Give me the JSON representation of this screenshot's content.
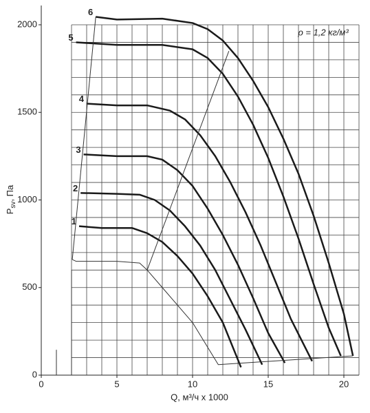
{
  "chart_data": {
    "type": "line",
    "annotation": "ρ = 1,2 кг/м³",
    "x_label": "Q, м³/ч x 1000",
    "y_label": {
      "main": "P",
      "sub": "sv",
      "rest": ", Па"
    },
    "xlim": [
      0,
      21
    ],
    "ylim": [
      0,
      2110
    ],
    "xticks": [
      0,
      5,
      10,
      15,
      20
    ],
    "yticks": [
      0,
      500,
      1000,
      1500,
      2000
    ],
    "grid": true,
    "xgrid": [
      2,
      3,
      4,
      5,
      6,
      7,
      8,
      9,
      10,
      11,
      12,
      13,
      14,
      15,
      16,
      17,
      18,
      19,
      20,
      21
    ],
    "ygrid": [
      100,
      200,
      300,
      400,
      500,
      600,
      700,
      800,
      900,
      1000,
      1100,
      1200,
      1300,
      1400,
      1500,
      1600,
      1700,
      1800,
      1900,
      2000
    ],
    "series": [
      {
        "name": "1",
        "color": "#1a1a1a",
        "width": 2.5,
        "x": [
          2.5,
          4,
          6,
          7,
          8,
          9,
          10,
          11,
          12,
          13.2
        ],
        "values": [
          850,
          840,
          840,
          810,
          760,
          680,
          580,
          450,
          300,
          45
        ]
      },
      {
        "name": "2",
        "color": "#1a1a1a",
        "width": 2.5,
        "x": [
          2.6,
          5,
          6.5,
          7.5,
          8.5,
          9.5,
          10.5,
          11.5,
          12.5,
          13.5,
          14.6
        ],
        "values": [
          1040,
          1035,
          1030,
          1000,
          940,
          850,
          740,
          600,
          430,
          260,
          60
        ]
      },
      {
        "name": "3",
        "color": "#1a1a1a",
        "width": 2.5,
        "x": [
          2.8,
          5,
          7,
          8,
          9,
          10,
          11,
          12,
          13,
          14,
          15,
          16.1
        ],
        "values": [
          1260,
          1250,
          1250,
          1230,
          1170,
          1080,
          950,
          800,
          630,
          440,
          240,
          70
        ]
      },
      {
        "name": "4",
        "color": "#1a1a1a",
        "width": 2.5,
        "x": [
          3,
          5,
          7,
          8.5,
          9.5,
          10.5,
          11.5,
          12.5,
          13.5,
          14.5,
          15.5,
          16.5,
          17.9
        ],
        "values": [
          1550,
          1540,
          1540,
          1510,
          1460,
          1370,
          1250,
          1100,
          930,
          740,
          530,
          320,
          80
        ]
      },
      {
        "name": "5",
        "color": "#1a1a1a",
        "width": 2.5,
        "x": [
          2.3,
          5,
          8,
          10,
          11,
          12,
          13,
          14,
          15,
          16,
          17,
          18,
          19,
          19.8
        ],
        "values": [
          1900,
          1885,
          1885,
          1860,
          1810,
          1720,
          1590,
          1430,
          1240,
          1020,
          780,
          520,
          270,
          110
        ]
      },
      {
        "name": "6",
        "color": "#1a1a1a",
        "width": 2.5,
        "x": [
          3.6,
          5,
          8,
          10,
          11,
          12,
          13,
          14,
          15,
          16,
          17,
          18,
          19,
          20,
          20.6
        ],
        "values": [
          2045,
          2030,
          2035,
          2010,
          1975,
          1910,
          1810,
          1680,
          1530,
          1350,
          1150,
          910,
          640,
          350,
          110
        ]
      },
      {
        "color": "#333333",
        "width": 1,
        "x": [
          2.05,
          3.6
        ],
        "values": [
          660,
          2045
        ]
      },
      {
        "color": "#333333",
        "width": 1,
        "x": [
          2.05,
          2.3,
          5,
          6.5,
          7,
          8,
          9,
          10,
          11.7,
          20.6
        ],
        "values": [
          660,
          650,
          650,
          640,
          600,
          500,
          400,
          300,
          60,
          110
        ]
      },
      {
        "color": "#333333",
        "width": 1,
        "x": [
          7,
          12.4
        ],
        "values": [
          600,
          1850
        ]
      },
      {
        "color": "#333333",
        "width": 1,
        "x": [
          2,
          2
        ],
        "values": [
          0,
          600
        ]
      },
      {
        "color": "#333333",
        "width": 1,
        "x": [
          1,
          1
        ],
        "values": [
          0,
          145
        ]
      }
    ]
  }
}
